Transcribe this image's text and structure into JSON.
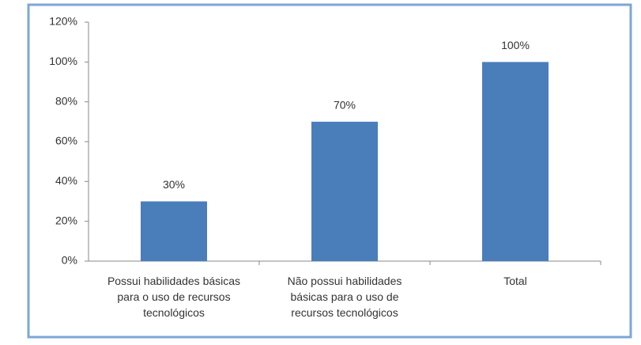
{
  "chart_data": {
    "type": "bar",
    "categories": [
      "Possui habilidades básicas para o uso de recursos tecnológicos",
      "Não possui habilidades básicas para o uso de recursos tecnológicos",
      "Total"
    ],
    "values": [
      30,
      70,
      100
    ],
    "value_labels": [
      "30%",
      "70%",
      "100%"
    ],
    "color": "#4a7ebb",
    "ylim": [
      0,
      120
    ],
    "yticks": [
      {
        "value": 0,
        "label": "0%"
      },
      {
        "value": 20,
        "label": "20%"
      },
      {
        "value": 40,
        "label": "40%"
      },
      {
        "value": 60,
        "label": "60%"
      },
      {
        "value": 80,
        "label": "80%"
      },
      {
        "value": 100,
        "label": "100%"
      },
      {
        "value": 120,
        "label": "120%"
      }
    ],
    "grid": false
  }
}
